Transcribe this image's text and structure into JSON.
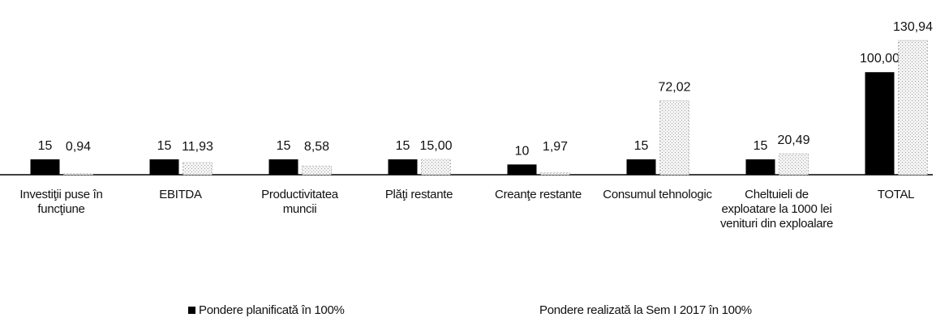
{
  "chart_data": {
    "type": "bar",
    "categories": [
      "Investiţii puse în funcţiune",
      "EBITDA",
      "Productivitatea muncii",
      "Plăţi restante",
      "Creanţe restante",
      "Consumul tehnologic",
      "Cheltuieli de exploatare la 1000 lei venituri din exploalare",
      "TOTAL"
    ],
    "series": [
      {
        "name": "Pondere planificată în 100%",
        "color": "#000000",
        "values": [
          15,
          15,
          15,
          15,
          10,
          15,
          15,
          100
        ],
        "value_labels": [
          "15",
          "15",
          "15",
          "15",
          "10",
          "15",
          "15",
          "100,00"
        ]
      },
      {
        "name": "Pondere realizată la Sem I 2017 în 100%",
        "color": "#d9d9d9",
        "values": [
          0.94,
          11.93,
          8.58,
          15.0,
          1.97,
          72.02,
          20.49,
          130.94
        ],
        "value_labels": [
          "0,94",
          "11,93",
          "8,58",
          "15,00",
          "1,97",
          "72,02",
          "20,49",
          "130,94"
        ]
      }
    ],
    "legend": "bottom"
  }
}
